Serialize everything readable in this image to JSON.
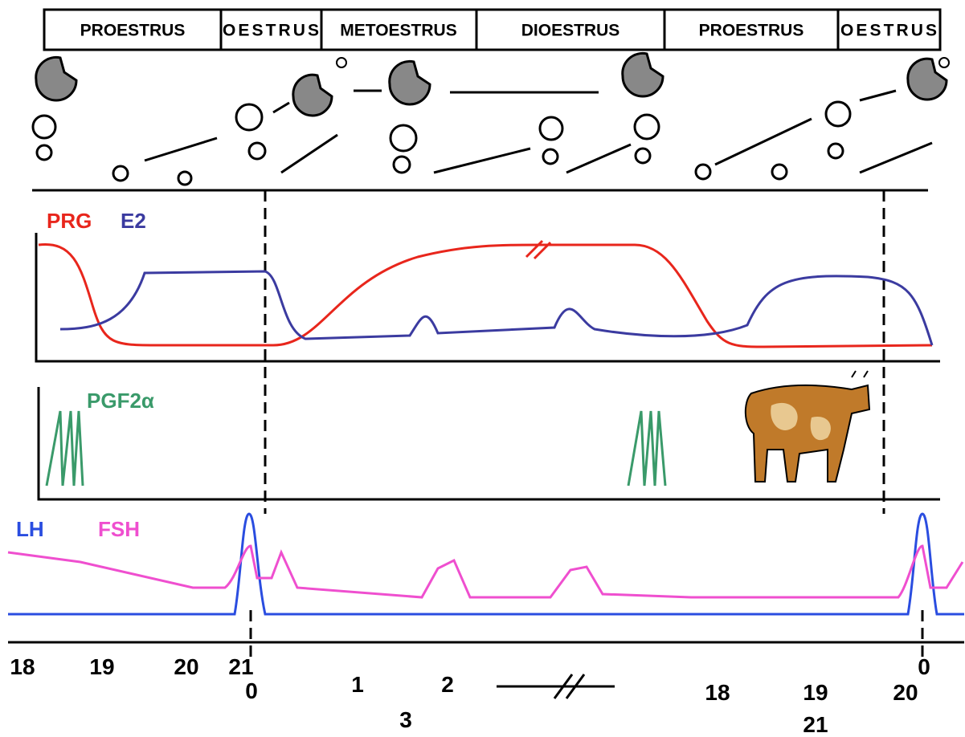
{
  "phases": [
    "PROESTRUS",
    "OESTRUS",
    "METOESTRUS",
    "DIOESTRUS",
    "PROESTRUS",
    "OESTRUS"
  ],
  "hormones": {
    "prg": "PRG",
    "e2": "E2",
    "pgf": "PGF2α",
    "lh": "LH",
    "fsh": "FSH"
  },
  "days": [
    "18",
    "19",
    "20",
    "21",
    "0",
    "1",
    "2",
    "3",
    "18",
    "19",
    "20",
    "21",
    "0"
  ]
}
